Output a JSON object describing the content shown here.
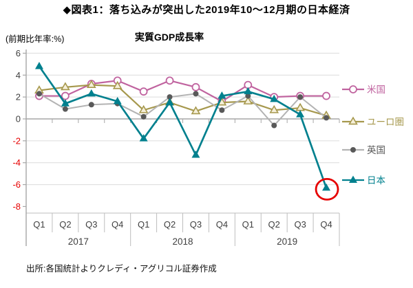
{
  "header": {
    "title": "◆図表1：落ち込みが突出した2019年10～12月期の日本経済"
  },
  "chart_data": {
    "type": "line",
    "title": "実質GDP成長率",
    "unit_label": "(前期比年率:%)",
    "categories": [
      "Q1",
      "Q2",
      "Q3",
      "Q4",
      "Q1",
      "Q2",
      "Q3",
      "Q4",
      "Q1",
      "Q2",
      "Q3",
      "Q4"
    ],
    "year_groups": [
      {
        "label": "2017",
        "span": 4
      },
      {
        "label": "2018",
        "span": 4
      },
      {
        "label": "2019",
        "span": 4
      }
    ],
    "ylim": [
      -8,
      6
    ],
    "yticks": [
      6,
      4,
      2,
      0,
      -2,
      -4,
      -6,
      -8
    ],
    "grid": "horizontal",
    "legend_position": "right",
    "series": [
      {
        "id": "us",
        "name": "米国",
        "color": "#c0639f",
        "label_color": "#c0639f",
        "marker": "circle-open",
        "marker_fill": "#ffffff",
        "values": [
          2.1,
          2.1,
          3.2,
          3.5,
          2.5,
          3.5,
          2.9,
          1.6,
          3.1,
          2.0,
          2.1,
          2.1
        ]
      },
      {
        "id": "eurozone",
        "name": "ユーロ圏",
        "color": "#a6984d",
        "label_color": "#a6984d",
        "marker": "triangle-open",
        "marker_fill": "#f5efd9",
        "values": [
          2.6,
          2.9,
          3.1,
          3.0,
          0.8,
          1.5,
          0.7,
          1.5,
          1.6,
          0.8,
          1.0,
          0.3
        ]
      },
      {
        "id": "uk",
        "name": "英国",
        "color": "#b3b3b3",
        "label_color": "#595959",
        "marker": "circle-filled",
        "marker_fill": "#595959",
        "values": [
          2.3,
          0.9,
          1.3,
          1.4,
          0.2,
          2.0,
          2.3,
          0.8,
          2.1,
          -0.6,
          2.0,
          0.1
        ]
      },
      {
        "id": "japan",
        "name": "日本",
        "color": "#00808e",
        "label_color": "#00808e",
        "marker": "triangle-filled",
        "marker_fill": "#00808e",
        "values": [
          4.8,
          1.4,
          2.3,
          1.6,
          -1.8,
          1.5,
          -3.3,
          2.1,
          2.5,
          1.8,
          0.4,
          -6.3
        ]
      }
    ],
    "annotation": {
      "shape": "ellipse",
      "series_index": 3,
      "point_index": 11,
      "color": "#e60000",
      "note": "highlight of Japan 2019Q4 drop"
    },
    "colors": {
      "negative_label": "#e60000",
      "label_text": "#3f3f3f",
      "grid": "#dcdcdc",
      "zero_line": "#a6a6a6",
      "axis": "#bdbdbd"
    }
  },
  "footer": {
    "source": "出所:各国統計よりクレディ・アグリコル証券作成"
  }
}
